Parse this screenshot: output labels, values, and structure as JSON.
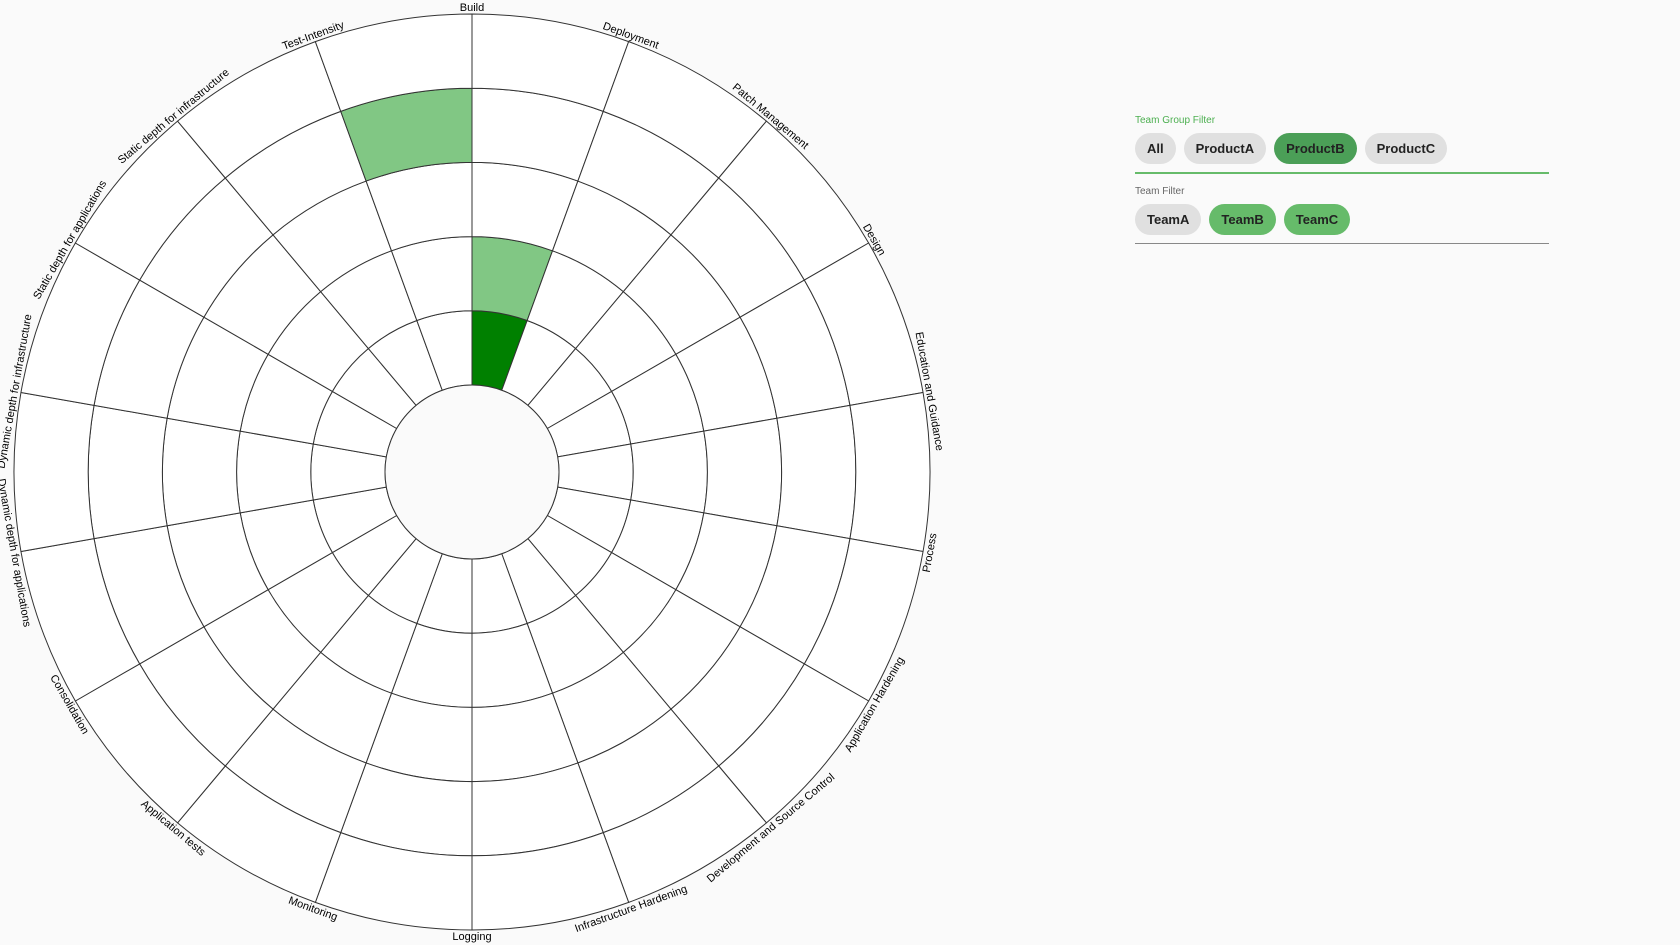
{
  "chart_data": {
    "type": "radial-heatmap",
    "levels": 5,
    "sectors": [
      "Build",
      "Deployment",
      "Patch Management",
      "Design",
      "Education and Guidance",
      "Process",
      "Application Hardening",
      "Development and Source Control",
      "Infrastructure Hardening",
      "Logging",
      "Monitoring",
      "Application tests",
      "Consolidation",
      "Dynamic depth for applications",
      "Dynamic depth for infrastructure",
      "Static depth for applications",
      "Static depth for infrastructure",
      "Test-Intensity"
    ],
    "filled_cells": [
      {
        "sector": "Build",
        "level": 1,
        "color": "#008000"
      },
      {
        "sector": "Build",
        "level": 2,
        "color": "#81c784"
      },
      {
        "sector": "Test-Intensity",
        "level": 4,
        "color": "#81c784"
      }
    ],
    "colors": {
      "grid": "#333333",
      "cell": "#ffffff"
    }
  },
  "filters": {
    "team_group": {
      "label": "Team Group Filter",
      "chips": [
        "All",
        "ProductA",
        "ProductB",
        "ProductC"
      ],
      "selected": [
        "ProductB"
      ]
    },
    "team": {
      "label": "Team Filter",
      "chips": [
        "TeamA",
        "TeamB",
        "TeamC"
      ],
      "selected": [
        "TeamB",
        "TeamC"
      ]
    }
  }
}
